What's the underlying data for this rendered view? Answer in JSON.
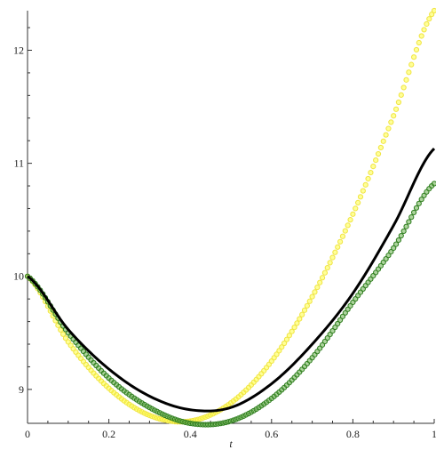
{
  "chart_data": {
    "type": "scatter",
    "xlabel": "t",
    "xlim": [
      0,
      1
    ],
    "ylim": [
      8.7,
      12.35
    ],
    "x_ticks": [
      {
        "value": 0,
        "label": "0"
      },
      {
        "value": 0.2,
        "label": "0.2"
      },
      {
        "value": 0.4,
        "label": "0.4"
      },
      {
        "value": 0.6,
        "label": "0.6"
      },
      {
        "value": 0.8,
        "label": "0.8"
      },
      {
        "value": 1,
        "label": "1"
      }
    ],
    "y_ticks": [
      {
        "value": 9,
        "label": "9"
      },
      {
        "value": 10,
        "label": "10"
      },
      {
        "value": 11,
        "label": "11"
      },
      {
        "value": 12,
        "label": "12"
      }
    ],
    "grid": false,
    "legend": "none",
    "series": [
      {
        "style": "line",
        "color": "#000000",
        "x": [
          0,
          0.1,
          0.2,
          0.3,
          0.4,
          0.5,
          0.6,
          0.7,
          0.8,
          0.9,
          1.0
        ],
        "y": [
          10.0,
          9.53,
          9.18,
          8.94,
          8.82,
          8.84,
          9.05,
          9.4,
          9.85,
          10.45,
          11.13
        ]
      },
      {
        "style": "markers",
        "marker_stroke": "#f0e442",
        "marker_fill": "#ffff40",
        "x": [
          0,
          0.1,
          0.2,
          0.3,
          0.4,
          0.5,
          0.6,
          0.7,
          0.8,
          0.9,
          1.0
        ],
        "y": [
          10.0,
          9.42,
          9.01,
          8.77,
          8.72,
          8.88,
          9.25,
          9.82,
          10.55,
          11.42,
          12.35
        ]
      },
      {
        "style": "markers",
        "marker_stroke": "#2e7d1e",
        "marker_fill": "#6ab04c",
        "x": [
          0,
          0.1,
          0.2,
          0.3,
          0.4,
          0.5,
          0.6,
          0.7,
          0.8,
          0.9,
          1.0
        ],
        "y": [
          10.0,
          9.5,
          9.1,
          8.84,
          8.7,
          8.72,
          8.92,
          9.28,
          9.77,
          10.25,
          10.82
        ]
      }
    ]
  }
}
